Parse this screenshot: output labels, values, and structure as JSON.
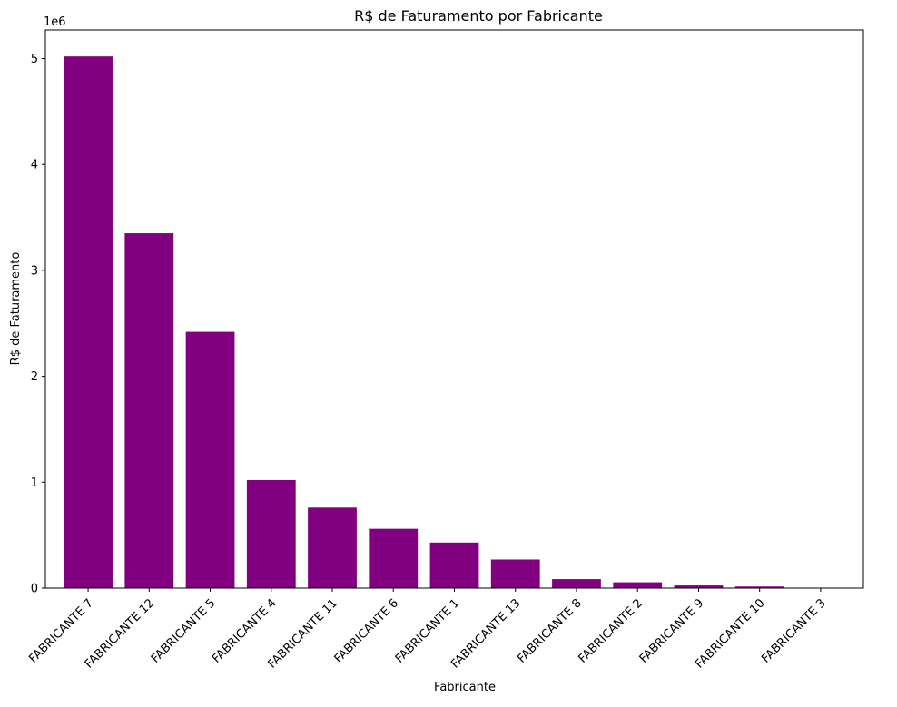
{
  "chart_data": {
    "type": "bar",
    "title": "R$ de Faturamento por Fabricante",
    "xlabel": "Fabricante",
    "ylabel": "R$ de Faturamento",
    "y_offset_text": "1e6",
    "categories": [
      "FABRICANTE 7",
      "FABRICANTE 12",
      "FABRICANTE 5",
      "FABRICANTE 4",
      "FABRICANTE 11",
      "FABRICANTE 6",
      "FABRICANTE 1",
      "FABRICANTE 13",
      "FABRICANTE 8",
      "FABRICANTE 2",
      "FABRICANTE 9",
      "FABRICANTE 10",
      "FABRICANTE 3"
    ],
    "values": [
      5020000,
      3350000,
      2420000,
      1020000,
      760000,
      560000,
      430000,
      270000,
      85000,
      55000,
      25000,
      15000,
      0
    ],
    "ylim": [
      0,
      5270000
    ],
    "yticks": [
      0,
      1000000,
      2000000,
      3000000,
      4000000,
      5000000
    ],
    "ytick_labels": [
      "0",
      "1",
      "2",
      "3",
      "4",
      "5"
    ],
    "grid": false,
    "bar_color": "#800080"
  }
}
